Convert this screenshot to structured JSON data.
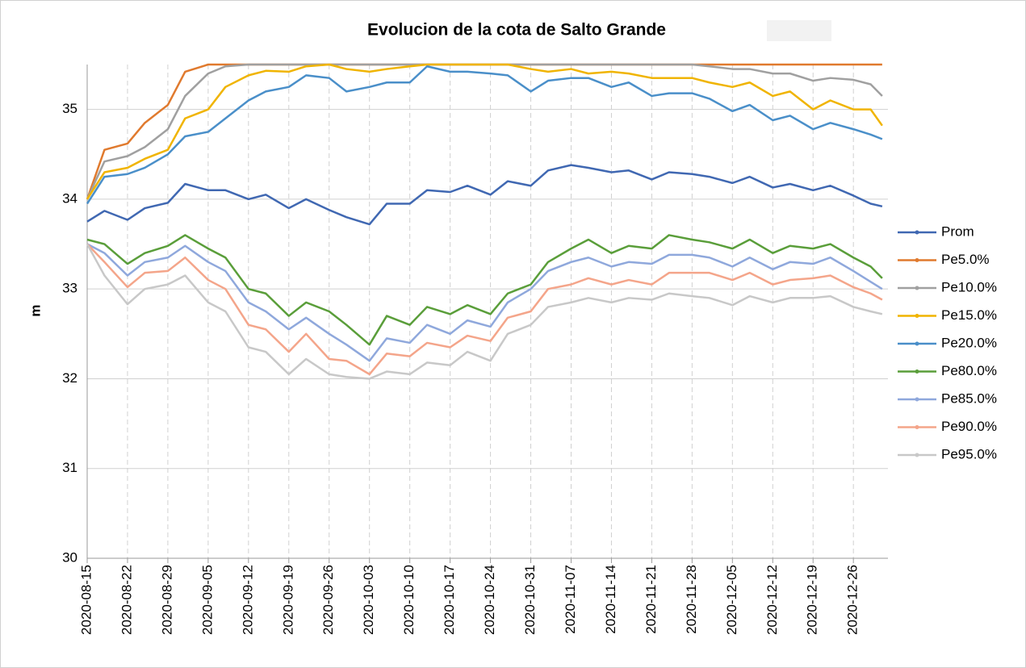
{
  "chart_data": {
    "type": "line",
    "title": "Evolucion de la cota de Salto Grande",
    "ylabel": "m",
    "x": [
      "2020-08-15",
      "2020-08-18",
      "2020-08-22",
      "2020-08-25",
      "2020-08-29",
      "2020-09-01",
      "2020-09-05",
      "2020-09-08",
      "2020-09-12",
      "2020-09-15",
      "2020-09-19",
      "2020-09-22",
      "2020-09-26",
      "2020-09-29",
      "2020-10-03",
      "2020-10-06",
      "2020-10-10",
      "2020-10-13",
      "2020-10-17",
      "2020-10-20",
      "2020-10-24",
      "2020-10-27",
      "2020-10-31",
      "2020-11-03",
      "2020-11-07",
      "2020-11-10",
      "2020-11-14",
      "2020-11-17",
      "2020-11-21",
      "2020-11-24",
      "2020-11-28",
      "2020-12-01",
      "2020-12-05",
      "2020-12-08",
      "2020-12-12",
      "2020-12-15",
      "2020-12-19",
      "2020-12-22",
      "2020-12-26",
      "2020-12-29",
      "2020-12-31"
    ],
    "xlim": [
      "2020-08-15",
      "2021-01-01"
    ],
    "xticks": [
      "2020-08-15",
      "2020-08-22",
      "2020-08-29",
      "2020-09-05",
      "2020-09-12",
      "2020-09-19",
      "2020-09-26",
      "2020-10-03",
      "2020-10-10",
      "2020-10-17",
      "2020-10-24",
      "2020-10-31",
      "2020-11-07",
      "2020-11-14",
      "2020-11-21",
      "2020-11-28",
      "2020-12-05",
      "2020-12-12",
      "2020-12-19",
      "2020-12-26"
    ],
    "ylim": [
      30,
      35.5
    ],
    "yticks": [
      30,
      31,
      32,
      33,
      34,
      35
    ],
    "grid": true,
    "legend": "right",
    "series": [
      {
        "name": "Prom",
        "color": "#4068b2",
        "values": [
          33.75,
          33.87,
          33.77,
          33.9,
          33.96,
          34.17,
          34.1,
          34.1,
          34.0,
          34.05,
          33.9,
          34.0,
          33.88,
          33.8,
          33.72,
          33.95,
          33.95,
          34.1,
          34.08,
          34.15,
          34.05,
          34.2,
          34.15,
          34.32,
          34.38,
          34.35,
          34.3,
          34.32,
          34.22,
          34.3,
          34.28,
          34.25,
          34.18,
          34.25,
          34.13,
          34.17,
          34.1,
          34.15,
          34.04,
          33.95,
          33.92
        ]
      },
      {
        "name": "Pe5.0%",
        "color": "#e07a2e",
        "values": [
          34.0,
          34.55,
          34.62,
          34.85,
          35.05,
          35.42,
          35.5,
          35.5,
          35.5,
          35.5,
          35.5,
          35.5,
          35.5,
          35.5,
          35.5,
          35.5,
          35.5,
          35.5,
          35.5,
          35.5,
          35.5,
          35.5,
          35.5,
          35.5,
          35.5,
          35.5,
          35.5,
          35.5,
          35.5,
          35.5,
          35.5,
          35.5,
          35.5,
          35.5,
          35.5,
          35.5,
          35.5,
          35.5,
          35.5,
          35.5,
          35.5
        ]
      },
      {
        "name": "Pe10.0%",
        "color": "#a0a0a0",
        "values": [
          34.0,
          34.42,
          34.48,
          34.58,
          34.78,
          35.15,
          35.4,
          35.48,
          35.5,
          35.5,
          35.5,
          35.5,
          35.5,
          35.5,
          35.5,
          35.5,
          35.5,
          35.5,
          35.5,
          35.5,
          35.5,
          35.5,
          35.5,
          35.5,
          35.5,
          35.5,
          35.5,
          35.5,
          35.5,
          35.5,
          35.5,
          35.48,
          35.45,
          35.45,
          35.4,
          35.4,
          35.32,
          35.35,
          35.33,
          35.28,
          35.15
        ]
      },
      {
        "name": "Pe15.0%",
        "color": "#f0b400",
        "values": [
          34.0,
          34.3,
          34.35,
          34.45,
          34.55,
          34.9,
          35.0,
          35.25,
          35.38,
          35.43,
          35.42,
          35.48,
          35.5,
          35.45,
          35.42,
          35.45,
          35.48,
          35.5,
          35.5,
          35.5,
          35.5,
          35.5,
          35.45,
          35.42,
          35.45,
          35.4,
          35.42,
          35.4,
          35.35,
          35.35,
          35.35,
          35.3,
          35.25,
          35.3,
          35.15,
          35.2,
          35.0,
          35.1,
          35.0,
          35.0,
          34.82
        ]
      },
      {
        "name": "Pe20.0%",
        "color": "#4a8fc9",
        "values": [
          33.95,
          34.25,
          34.28,
          34.35,
          34.5,
          34.7,
          34.75,
          34.9,
          35.1,
          35.2,
          35.25,
          35.38,
          35.35,
          35.2,
          35.25,
          35.3,
          35.3,
          35.48,
          35.42,
          35.42,
          35.4,
          35.38,
          35.2,
          35.32,
          35.35,
          35.35,
          35.25,
          35.3,
          35.15,
          35.18,
          35.18,
          35.12,
          34.98,
          35.05,
          34.88,
          34.93,
          34.78,
          34.85,
          34.78,
          34.72,
          34.67
        ]
      },
      {
        "name": "Pe80.0%",
        "color": "#5a9e3a",
        "values": [
          33.55,
          33.5,
          33.28,
          33.4,
          33.48,
          33.6,
          33.45,
          33.35,
          33.0,
          32.95,
          32.7,
          32.85,
          32.75,
          32.6,
          32.38,
          32.7,
          32.6,
          32.8,
          32.72,
          32.82,
          32.72,
          32.95,
          33.05,
          33.3,
          33.45,
          33.55,
          33.4,
          33.48,
          33.45,
          33.6,
          33.55,
          33.52,
          33.45,
          33.55,
          33.4,
          33.48,
          33.45,
          33.5,
          33.35,
          33.25,
          33.12
        ]
      },
      {
        "name": "Pe85.0%",
        "color": "#8fa8dc",
        "values": [
          33.5,
          33.4,
          33.15,
          33.3,
          33.35,
          33.48,
          33.3,
          33.2,
          32.85,
          32.75,
          32.55,
          32.68,
          32.5,
          32.38,
          32.2,
          32.45,
          32.4,
          32.6,
          32.5,
          32.65,
          32.58,
          32.85,
          33.0,
          33.2,
          33.3,
          33.35,
          33.25,
          33.3,
          33.28,
          33.38,
          33.38,
          33.35,
          33.25,
          33.35,
          33.22,
          33.3,
          33.28,
          33.35,
          33.2,
          33.08,
          33.0
        ]
      },
      {
        "name": "Pe90.0%",
        "color": "#f4a58a",
        "values": [
          33.5,
          33.3,
          33.02,
          33.18,
          33.2,
          33.35,
          33.1,
          33.0,
          32.6,
          32.55,
          32.3,
          32.5,
          32.22,
          32.2,
          32.05,
          32.28,
          32.25,
          32.4,
          32.35,
          32.48,
          32.42,
          32.68,
          32.75,
          33.0,
          33.05,
          33.12,
          33.05,
          33.1,
          33.05,
          33.18,
          33.18,
          33.18,
          33.1,
          33.18,
          33.05,
          33.1,
          33.12,
          33.15,
          33.02,
          32.95,
          32.88
        ]
      },
      {
        "name": "Pe95.0%",
        "color": "#c8c8c8",
        "values": [
          33.5,
          33.15,
          32.83,
          33.0,
          33.05,
          33.15,
          32.85,
          32.75,
          32.35,
          32.3,
          32.05,
          32.22,
          32.05,
          32.02,
          32.0,
          32.08,
          32.05,
          32.18,
          32.15,
          32.3,
          32.2,
          32.5,
          32.6,
          32.8,
          32.85,
          32.9,
          32.85,
          32.9,
          32.88,
          32.95,
          32.92,
          32.9,
          32.82,
          32.92,
          32.85,
          32.9,
          32.9,
          32.92,
          32.8,
          32.75,
          32.72
        ]
      }
    ]
  }
}
